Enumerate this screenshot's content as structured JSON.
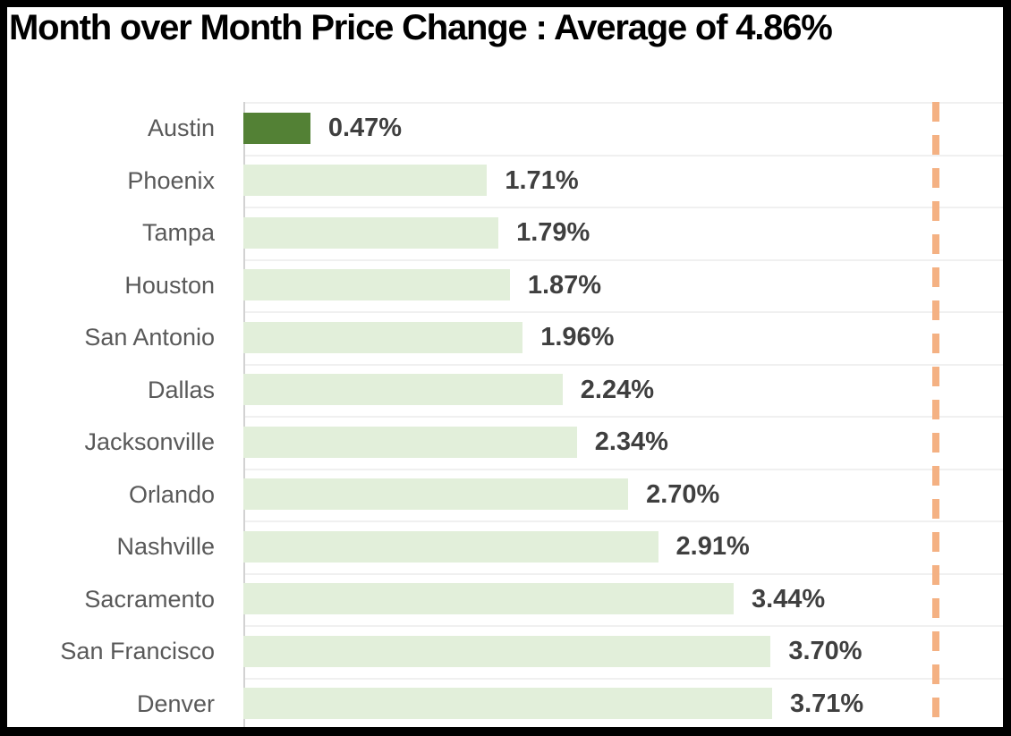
{
  "chart_data": {
    "type": "bar",
    "orientation": "horizontal",
    "title": "Month over Month Price Change : Average of 4.86%",
    "categories": [
      "Austin",
      "Phoenix",
      "Tampa",
      "Houston",
      "San Antonio",
      "Dallas",
      "Jacksonville",
      "Orlando",
      "Nashville",
      "Sacramento",
      "San Francisco",
      "Denver"
    ],
    "values": [
      0.47,
      1.71,
      1.79,
      1.87,
      1.96,
      2.24,
      2.34,
      2.7,
      2.91,
      3.44,
      3.7,
      3.71
    ],
    "value_labels": [
      "0.47%",
      "1.71%",
      "1.79%",
      "1.87%",
      "1.96%",
      "2.24%",
      "2.34%",
      "2.70%",
      "2.91%",
      "3.44%",
      "3.70%",
      "3.71%"
    ],
    "average": 4.86,
    "average_label": "4.86%",
    "xlim": [
      0,
      5.33
    ],
    "grid": "row-separators",
    "legend": "none",
    "highlight_index": 0,
    "colors": {
      "bar": "#e2efda",
      "highlight_bar": "#538135",
      "average_line": "#f4b183",
      "category_label": "#595959",
      "value_label": "#3f3f3f",
      "title": "#000000",
      "axis_line": "#d2d2d2",
      "gridline": "#f0f0f0",
      "background": "#ffffff",
      "border": "#000000"
    }
  }
}
